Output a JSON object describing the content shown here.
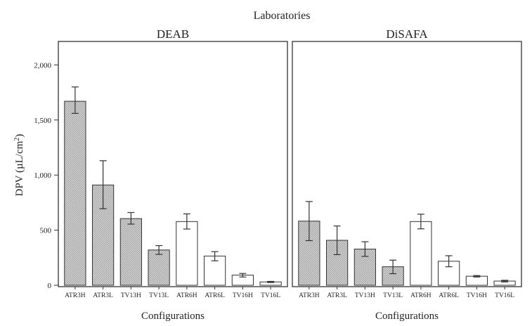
{
  "chart_data": {
    "type": "bar",
    "title": "Laboratories",
    "ylabel_main": "DPV (µL/cm",
    "ylabel_sup": "2",
    "ylabel_tail": ")",
    "ylim": [
      0,
      2200
    ],
    "yticks": [
      0,
      500,
      1000,
      1500,
      2000
    ],
    "ytick_labels": [
      "0",
      "500",
      "1,000",
      "1,500",
      "2,000"
    ],
    "grid": false,
    "fill_colors": {
      "hatched": "#c9c9c9",
      "open": "#ffffff"
    },
    "panels": [
      {
        "title": "DEAB",
        "xlabel": "Configurations",
        "categories": [
          "ATR3H",
          "ATR3L",
          "TV13H",
          "TV13L",
          "ATR6H",
          "ATR6L",
          "TV16H",
          "TV16L"
        ],
        "values": [
          1670,
          910,
          605,
          320,
          578,
          265,
          92,
          30
        ],
        "err_low": [
          1560,
          695,
          555,
          280,
          510,
          222,
          75,
          25
        ],
        "err_high": [
          1800,
          1130,
          660,
          360,
          648,
          305,
          107,
          35
        ],
        "hatched": [
          true,
          true,
          true,
          true,
          false,
          false,
          false,
          false
        ]
      },
      {
        "title": "DiSAFA",
        "xlabel": "Configurations",
        "categories": [
          "ATR3H",
          "ATR3L",
          "TV13H",
          "TV13L",
          "ATR6H",
          "ATR6L",
          "TV16H",
          "TV16L"
        ],
        "values": [
          582,
          408,
          328,
          168,
          578,
          218,
          82,
          38
        ],
        "err_low": [
          405,
          278,
          262,
          105,
          512,
          168,
          75,
          30
        ],
        "err_high": [
          760,
          538,
          395,
          228,
          645,
          268,
          88,
          45
        ],
        "hatched": [
          true,
          true,
          true,
          true,
          false,
          false,
          false,
          false
        ]
      }
    ]
  }
}
